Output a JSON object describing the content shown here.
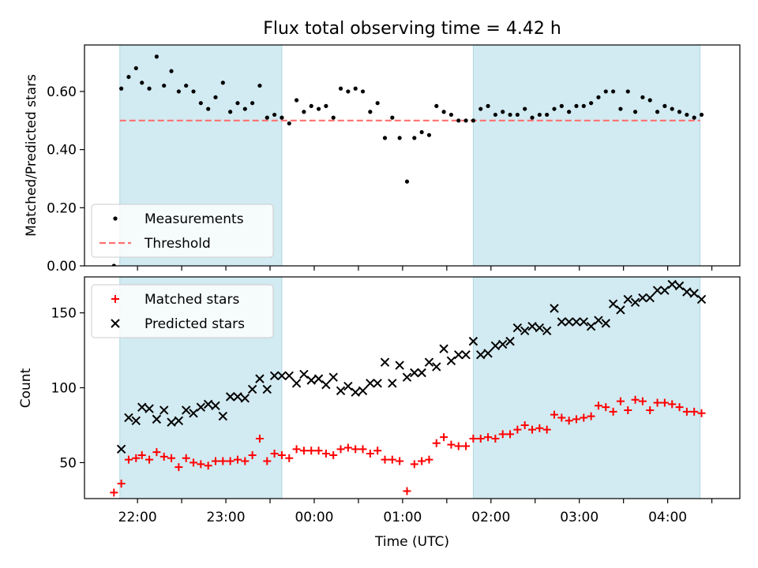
{
  "figure": {
    "title": "Flux total observing time = 4.42 h",
    "xlabel": "Time (UTC)",
    "x_tick_labels": [
      "22:00",
      "23:00",
      "00:00",
      "01:00",
      "02:00",
      "03:00",
      "04:00"
    ]
  },
  "colors": {
    "highlight": "#add8e6",
    "measurement": "#000000",
    "threshold": "#ff7070",
    "matched": "#ff0000",
    "predicted": "#000000"
  },
  "chart_data": [
    {
      "type": "scatter",
      "ylabel": "Matched/Predicted stars",
      "ylim": [
        0,
        0.76
      ],
      "y_ticks": [
        0.0,
        0.2,
        0.4,
        0.6
      ],
      "xlim": [
        "21:24",
        "04:49"
      ],
      "highlight_ranges": [
        [
          "21:48",
          "23:38"
        ],
        [
          "01:48",
          "04:22"
        ]
      ],
      "legend": {
        "location": "lower left",
        "entries": [
          "Measurements",
          "Threshold"
        ]
      },
      "threshold": 0.5,
      "series": [
        {
          "name": "Measurements",
          "x": [
            "21:44",
            "21:49",
            "21:54",
            "21:59",
            "22:03",
            "22:08",
            "22:13",
            "22:18",
            "22:23",
            "22:28",
            "22:33",
            "22:38",
            "22:43",
            "22:48",
            "22:53",
            "22:58",
            "23:03",
            "23:08",
            "23:13",
            "23:18",
            "23:23",
            "23:28",
            "23:33",
            "23:38",
            "23:43",
            "23:48",
            "23:53",
            "23:58",
            "00:03",
            "00:08",
            "00:13",
            "00:18",
            "00:23",
            "00:28",
            "00:33",
            "00:38",
            "00:43",
            "00:48",
            "00:53",
            "00:58",
            "01:03",
            "01:08",
            "01:13",
            "01:18",
            "01:23",
            "01:28",
            "01:33",
            "01:38",
            "01:43",
            "01:48",
            "01:53",
            "01:58",
            "02:03",
            "02:08",
            "02:13",
            "02:18",
            "02:23",
            "02:28",
            "02:33",
            "02:38",
            "02:43",
            "02:48",
            "02:53",
            "02:58",
            "03:03",
            "03:08",
            "03:13",
            "03:18",
            "03:23",
            "03:28",
            "03:33",
            "03:38",
            "03:43",
            "03:48",
            "03:53",
            "03:58",
            "04:03",
            "04:08",
            "04:13",
            "04:18",
            "04:23"
          ],
          "y": [
            0.0,
            0.61,
            0.65,
            0.68,
            0.63,
            0.61,
            0.72,
            0.62,
            0.67,
            0.6,
            0.62,
            0.6,
            0.56,
            0.54,
            0.58,
            0.63,
            0.53,
            0.56,
            0.54,
            0.56,
            0.62,
            0.51,
            0.52,
            0.51,
            0.49,
            0.57,
            0.53,
            0.55,
            0.54,
            0.55,
            0.51,
            0.61,
            0.6,
            0.61,
            0.6,
            0.53,
            0.56,
            0.44,
            0.51,
            0.44,
            0.29,
            0.44,
            0.46,
            0.45,
            0.55,
            0.53,
            0.52,
            0.5,
            0.5,
            0.5,
            0.54,
            0.55,
            0.52,
            0.53,
            0.52,
            0.52,
            0.54,
            0.51,
            0.52,
            0.52,
            0.54,
            0.55,
            0.53,
            0.55,
            0.55,
            0.56,
            0.58,
            0.6,
            0.6,
            0.54,
            0.6,
            0.53,
            0.58,
            0.57,
            0.53,
            0.55,
            0.54,
            0.53,
            0.52,
            0.51,
            0.52
          ]
        }
      ]
    },
    {
      "type": "scatter",
      "ylabel": "Count",
      "ylim": [
        26,
        174
      ],
      "y_ticks": [
        50,
        100,
        150
      ],
      "xlim": [
        "21:24",
        "04:49"
      ],
      "highlight_ranges": [
        [
          "21:48",
          "23:38"
        ],
        [
          "01:48",
          "04:22"
        ]
      ],
      "legend": {
        "location": "upper left",
        "entries": [
          "Matched stars",
          "Predicted stars"
        ]
      },
      "series": [
        {
          "name": "Matched stars",
          "x": [
            "21:44",
            "21:49",
            "21:54",
            "21:59",
            "22:03",
            "22:08",
            "22:13",
            "22:18",
            "22:23",
            "22:28",
            "22:33",
            "22:38",
            "22:43",
            "22:48",
            "22:53",
            "22:58",
            "23:03",
            "23:08",
            "23:13",
            "23:18",
            "23:23",
            "23:28",
            "23:33",
            "23:38",
            "23:43",
            "23:48",
            "23:53",
            "23:58",
            "00:03",
            "00:08",
            "00:13",
            "00:18",
            "00:23",
            "00:28",
            "00:33",
            "00:38",
            "00:43",
            "00:48",
            "00:53",
            "00:58",
            "01:03",
            "01:08",
            "01:13",
            "01:18",
            "01:23",
            "01:28",
            "01:33",
            "01:38",
            "01:43",
            "01:48",
            "01:53",
            "01:58",
            "02:03",
            "02:08",
            "02:13",
            "02:18",
            "02:23",
            "02:28",
            "02:33",
            "02:38",
            "02:43",
            "02:48",
            "02:53",
            "02:58",
            "03:03",
            "03:08",
            "03:13",
            "03:18",
            "03:23",
            "03:28",
            "03:33",
            "03:38",
            "03:43",
            "03:48",
            "03:53",
            "03:58",
            "04:03",
            "04:08",
            "04:13",
            "04:18",
            "04:23"
          ],
          "y": [
            30,
            36,
            52,
            53,
            55,
            52,
            57,
            54,
            53,
            47,
            53,
            50,
            49,
            48,
            51,
            51,
            51,
            52,
            51,
            55,
            66,
            51,
            56,
            55,
            53,
            59,
            58,
            58,
            58,
            56,
            55,
            59,
            60,
            59,
            59,
            56,
            58,
            52,
            52,
            51,
            31,
            49,
            51,
            52,
            63,
            67,
            62,
            61,
            61,
            66,
            66,
            67,
            66,
            69,
            69,
            72,
            75,
            72,
            73,
            72,
            82,
            80,
            78,
            79,
            80,
            81,
            88,
            87,
            84,
            91,
            85,
            92,
            91,
            85,
            90,
            90,
            89,
            87,
            84,
            84,
            83
          ]
        },
        {
          "name": "Predicted stars",
          "x": [
            "21:49",
            "21:54",
            "21:59",
            "22:03",
            "22:08",
            "22:13",
            "22:18",
            "22:23",
            "22:28",
            "22:33",
            "22:38",
            "22:43",
            "22:48",
            "22:53",
            "22:58",
            "23:03",
            "23:08",
            "23:13",
            "23:18",
            "23:23",
            "23:28",
            "23:33",
            "23:38",
            "23:43",
            "23:48",
            "23:53",
            "23:58",
            "00:03",
            "00:08",
            "00:13",
            "00:18",
            "00:23",
            "00:28",
            "00:33",
            "00:38",
            "00:43",
            "00:48",
            "00:53",
            "00:58",
            "01:03",
            "01:08",
            "01:13",
            "01:18",
            "01:23",
            "01:28",
            "01:33",
            "01:38",
            "01:43",
            "01:48",
            "01:53",
            "01:58",
            "02:03",
            "02:08",
            "02:13",
            "02:18",
            "02:23",
            "02:28",
            "02:33",
            "02:38",
            "02:43",
            "02:48",
            "02:53",
            "02:58",
            "03:03",
            "03:08",
            "03:13",
            "03:18",
            "03:23",
            "03:28",
            "03:33",
            "03:38",
            "03:43",
            "03:48",
            "03:53",
            "03:58",
            "04:03",
            "04:08",
            "04:13",
            "04:18",
            "04:23"
          ],
          "y": [
            59,
            80,
            78,
            87,
            86,
            79,
            85,
            77,
            78,
            85,
            83,
            87,
            89,
            88,
            81,
            94,
            94,
            93,
            99,
            106,
            99,
            108,
            108,
            108,
            103,
            109,
            105,
            106,
            102,
            107,
            98,
            101,
            97,
            98,
            103,
            103,
            117,
            103,
            115,
            107,
            110,
            110,
            117,
            114,
            126,
            118,
            122,
            122,
            131,
            122,
            123,
            128,
            129,
            131,
            140,
            138,
            141,
            140,
            138,
            153,
            144,
            144,
            144,
            144,
            141,
            145,
            143,
            156,
            152,
            159,
            157,
            160,
            160,
            165,
            165,
            169,
            168,
            164,
            163,
            159
          ]
        }
      ]
    }
  ]
}
